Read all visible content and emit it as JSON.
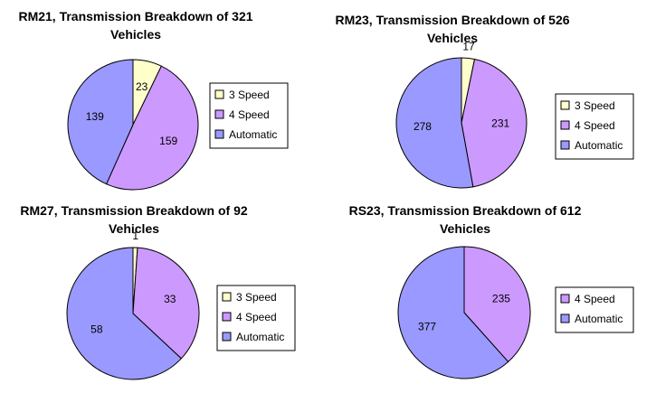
{
  "colors": {
    "3 Speed": "#ffffcc",
    "4 Speed": "#cc99ff",
    "Automatic": "#9999ff"
  },
  "chart_data": [
    {
      "type": "pie",
      "title_lines": [
        "RM21, Transmission Breakdown of 321",
        "Vehicles"
      ],
      "slices": [
        {
          "label": "3 Speed",
          "value": 23
        },
        {
          "label": "4 Speed",
          "value": 159
        },
        {
          "label": "Automatic",
          "value": 139
        }
      ],
      "legend": [
        "3 Speed",
        "4 Speed",
        "Automatic"
      ],
      "legend_position": "right"
    },
    {
      "type": "pie",
      "title_lines": [
        "RM23, Transmission Breakdown of 526",
        "Vehicles"
      ],
      "slices": [
        {
          "label": "3 Speed",
          "value": 17
        },
        {
          "label": "4 Speed",
          "value": 231
        },
        {
          "label": "Automatic",
          "value": 278
        }
      ],
      "legend": [
        "3 Speed",
        "4 Speed",
        "Automatic"
      ],
      "legend_position": "right"
    },
    {
      "type": "pie",
      "title_lines": [
        "RM27, Transmission Breakdown of 92",
        "Vehicles"
      ],
      "slices": [
        {
          "label": "3 Speed",
          "value": 1
        },
        {
          "label": "4 Speed",
          "value": 33
        },
        {
          "label": "Automatic",
          "value": 58
        }
      ],
      "legend": [
        "3 Speed",
        "4 Speed",
        "Automatic"
      ],
      "legend_position": "right"
    },
    {
      "type": "pie",
      "title_lines": [
        "RS23, Transmission Breakdown of 612",
        "Vehicles"
      ],
      "slices": [
        {
          "label": "4 Speed",
          "value": 235
        },
        {
          "label": "Automatic",
          "value": 377
        }
      ],
      "legend": [
        "4 Speed",
        "Automatic"
      ],
      "legend_position": "right"
    }
  ]
}
